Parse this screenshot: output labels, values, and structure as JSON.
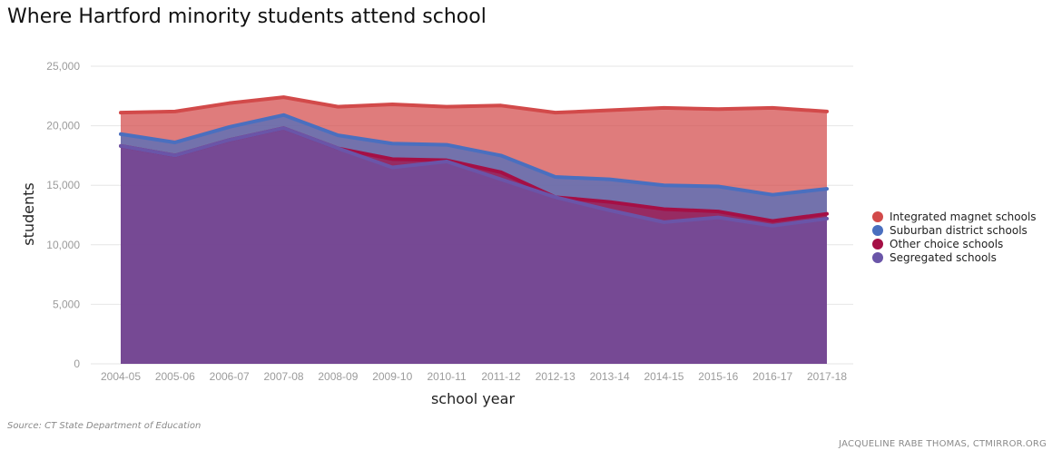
{
  "title": "Where Hartford minority students attend school",
  "source": "Source: CT State Department of Education",
  "credit": "JACQUELINE RABE THOMAS, CTMIRROR.ORG",
  "chart_data": {
    "type": "area",
    "stacked": true,
    "xlabel": "school year",
    "ylabel": "students",
    "ylim": [
      0,
      25000
    ],
    "yticks": [
      "0",
      "5,000",
      "10,000",
      "15,000",
      "20,000",
      "25,000"
    ],
    "ytick_values": [
      0,
      5000,
      10000,
      15000,
      20000,
      25000
    ],
    "grid": true,
    "legend_position": "right",
    "categories": [
      "2004-05",
      "2005-06",
      "2006-07",
      "2007-08",
      "2008-09",
      "2009-10",
      "2010-11",
      "2011-12",
      "2012-13",
      "2013-14",
      "2014-15",
      "2015-16",
      "2016-17",
      "2017-18"
    ],
    "series": [
      {
        "name": "Segregated schools",
        "color": "#6a55a8",
        "values": [
          18300,
          17500,
          18800,
          19800,
          18100,
          16500,
          17000,
          15500,
          14000,
          12900,
          11900,
          12300,
          11600,
          12200
        ]
      },
      {
        "name": "Other choice schools",
        "color": "#a50f45",
        "values": [
          0,
          0,
          0,
          0,
          0,
          700,
          100,
          600,
          0,
          700,
          1100,
          500,
          400,
          400
        ]
      },
      {
        "name": "Suburban district schools",
        "color": "#4a6fbf",
        "values": [
          1000,
          1100,
          1100,
          1100,
          1100,
          1300,
          1300,
          1400,
          1700,
          1900,
          2000,
          2100,
          2200,
          2100
        ]
      },
      {
        "name": "Integrated magnet schools",
        "color": "#d24a4a",
        "values": [
          1800,
          2600,
          2000,
          1500,
          2400,
          3300,
          3200,
          4200,
          5400,
          5800,
          6500,
          6500,
          7300,
          6500
        ]
      }
    ],
    "legend_order": [
      "Integrated magnet schools",
      "Suburban district schools",
      "Other choice schools",
      "Segregated schools"
    ]
  }
}
